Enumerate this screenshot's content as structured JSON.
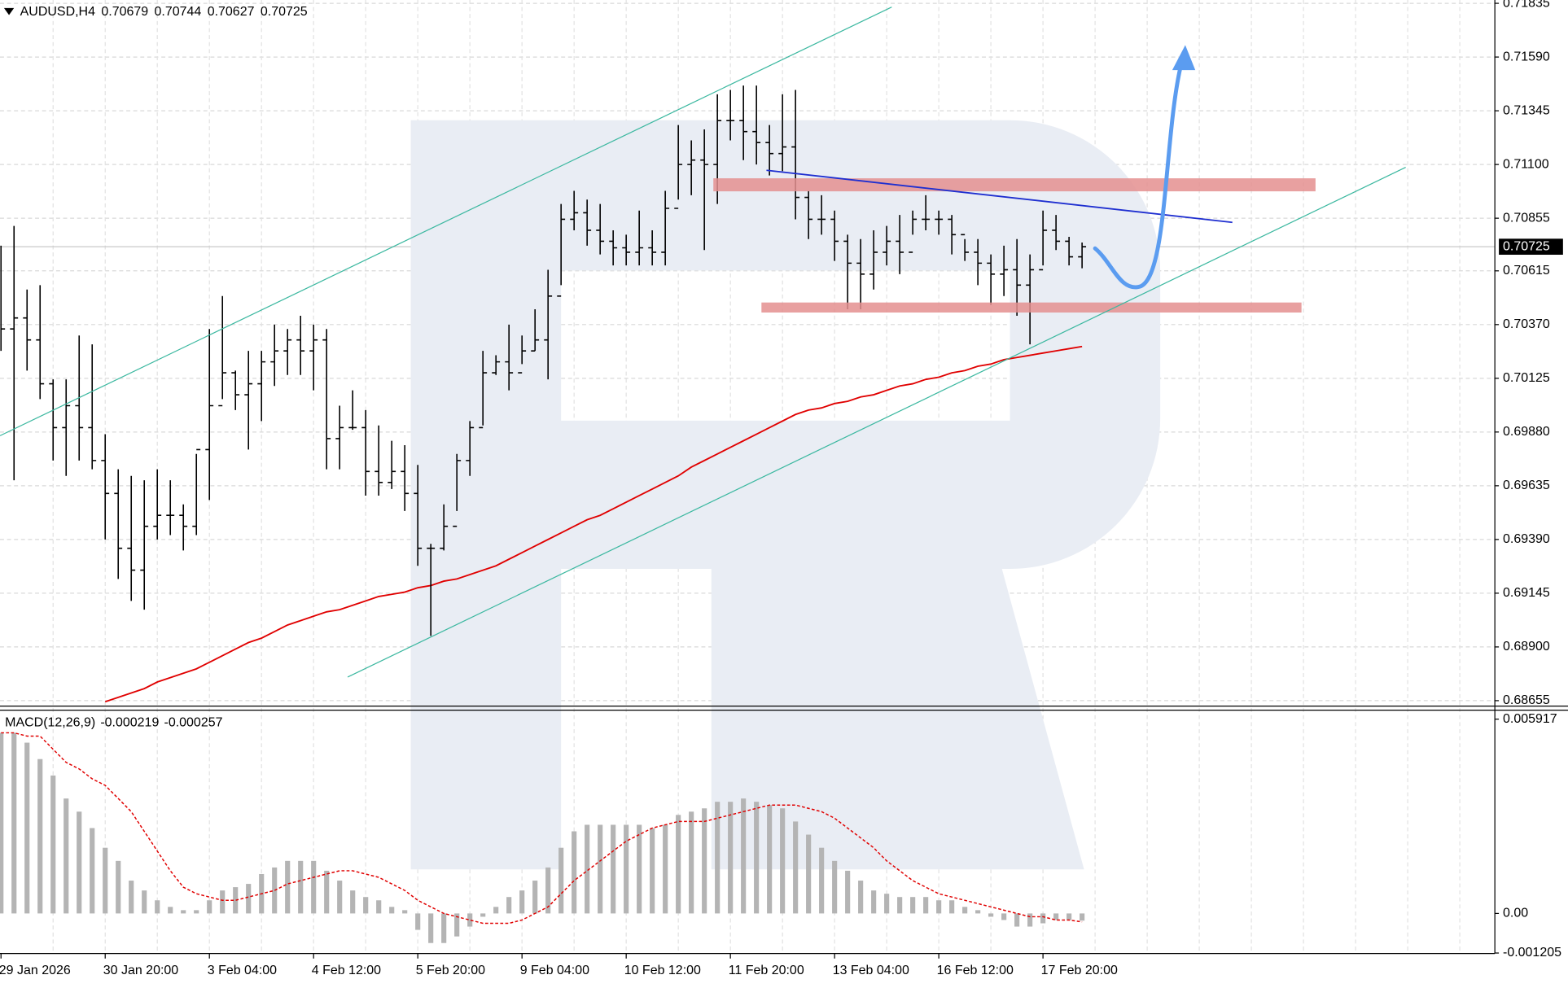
{
  "chart_data": [
    {
      "type": "ohlc",
      "title": "AUDUSD,H4",
      "color": "#000000",
      "grid": true,
      "categories": [
        "29 Jan 2026",
        null,
        null,
        null,
        null,
        null,
        null,
        null,
        "30 Jan 20:00",
        null,
        null,
        null,
        null,
        null,
        null,
        null,
        "3 Feb 04:00",
        null,
        null,
        null,
        null,
        null,
        null,
        null,
        "4 Feb 12:00",
        null,
        null,
        null,
        null,
        null,
        null,
        null,
        "5 Feb 20:00",
        null,
        null,
        null,
        null,
        null,
        null,
        null,
        "9 Feb 04:00",
        null,
        null,
        null,
        null,
        null,
        null,
        null,
        "10 Feb 12:00",
        null,
        null,
        null,
        null,
        null,
        null,
        null,
        "11 Feb 20:00",
        null,
        null,
        null,
        null,
        null,
        null,
        null,
        "13 Feb 04:00",
        null,
        null,
        null,
        null,
        null,
        null,
        null,
        "16 Feb 12:00",
        null,
        null,
        null,
        null,
        null,
        null,
        null,
        "17 Feb 20:00",
        null,
        null,
        null
      ],
      "high": [
        0.7073,
        0.7082,
        0.7053,
        0.7055,
        0.7012,
        0.7012,
        0.7032,
        0.7028,
        0.6987,
        0.6971,
        0.6968,
        0.6966,
        0.6971,
        0.6966,
        0.6955,
        0.6978,
        0.7035,
        0.705,
        0.7016,
        0.7025,
        0.7025,
        0.7037,
        0.7035,
        0.7041,
        0.7037,
        0.7035,
        0.7,
        0.7007,
        0.6998,
        0.6991,
        0.6984,
        0.6982,
        0.6973,
        0.6937,
        0.6955,
        0.6978,
        0.6993,
        0.7025,
        0.7023,
        0.7037,
        0.7032,
        0.7044,
        0.7062,
        0.7092,
        0.7098,
        0.7094,
        0.7092,
        0.708,
        0.7078,
        0.7089,
        0.708,
        0.7098,
        0.7128,
        0.7121,
        0.7126,
        0.7142,
        0.7144,
        0.7146,
        0.7146,
        0.7128,
        0.7142,
        0.7144,
        0.7098,
        0.7096,
        0.7089,
        0.7078,
        0.7076,
        0.708,
        0.7082,
        0.7087,
        0.7089,
        0.7096,
        0.7089,
        0.7087,
        0.7076,
        0.7076,
        0.7069,
        0.7073,
        0.7076,
        0.7069,
        0.7089,
        0.7087,
        0.7077,
        0.70744
      ],
      "low": [
        0.7025,
        0.6966,
        0.7016,
        0.7003,
        0.6975,
        0.6968,
        0.6975,
        0.6971,
        0.6939,
        0.6921,
        0.6911,
        0.6907,
        0.6939,
        0.6941,
        0.6934,
        0.6941,
        0.6957,
        0.7003,
        0.6998,
        0.698,
        0.6993,
        0.7009,
        0.7014,
        0.7014,
        0.7007,
        0.6971,
        0.6971,
        0.6989,
        0.6959,
        0.6959,
        0.6962,
        0.6952,
        0.6927,
        0.6895,
        0.6934,
        0.6952,
        0.6968,
        0.6991,
        0.7014,
        0.7007,
        0.7019,
        0.7025,
        0.7012,
        0.7055,
        0.708,
        0.7073,
        0.7069,
        0.7064,
        0.7064,
        0.7064,
        0.7064,
        0.7064,
        0.7094,
        0.7096,
        0.7071,
        0.7092,
        0.7121,
        0.7112,
        0.711,
        0.7105,
        0.7107,
        0.7085,
        0.7076,
        0.7078,
        0.7066,
        0.7044,
        0.7044,
        0.7053,
        0.7064,
        0.706,
        0.7078,
        0.708,
        0.7078,
        0.7069,
        0.7066,
        0.7055,
        0.7046,
        0.705,
        0.7041,
        0.7028,
        0.7064,
        0.7071,
        0.7064,
        0.70627
      ],
      "close": [
        0.7035,
        0.704,
        0.703,
        0.701,
        0.699,
        0.7,
        0.699,
        0.6975,
        0.696,
        0.6935,
        0.6925,
        0.6945,
        0.695,
        0.695,
        0.6945,
        0.698,
        0.7,
        0.7015,
        0.7005,
        0.701,
        0.702,
        0.7025,
        0.703,
        0.7025,
        0.703,
        0.6985,
        0.699,
        0.699,
        0.697,
        0.6965,
        0.697,
        0.696,
        0.6935,
        0.6935,
        0.6945,
        0.6975,
        0.699,
        0.7015,
        0.702,
        0.7015,
        0.7025,
        0.703,
        0.705,
        0.7085,
        0.7088,
        0.708,
        0.7075,
        0.7072,
        0.707,
        0.7072,
        0.707,
        0.709,
        0.711,
        0.7112,
        0.711,
        0.713,
        0.713,
        0.7125,
        0.712,
        0.7115,
        0.7118,
        0.7095,
        0.7085,
        0.7085,
        0.7075,
        0.7065,
        0.706,
        0.707,
        0.7075,
        0.707,
        0.7085,
        0.7085,
        0.7085,
        0.7078,
        0.707,
        0.7065,
        0.706,
        0.7062,
        0.7055,
        0.7062,
        0.708,
        0.7075,
        0.70679,
        0.70725
      ],
      "ma": {
        "color": "#e00000",
        "values": [
          null,
          null,
          null,
          null,
          null,
          null,
          null,
          null,
          0.6865,
          0.6867,
          0.6869,
          0.6871,
          0.6874,
          0.6876,
          0.6878,
          0.688,
          0.6883,
          0.6886,
          0.6889,
          0.6892,
          0.6894,
          0.6897,
          0.69,
          0.6902,
          0.6904,
          0.6906,
          0.6907,
          0.6909,
          0.6911,
          0.6913,
          0.6914,
          0.6915,
          0.6917,
          0.6918,
          0.692,
          0.6921,
          0.6923,
          0.6925,
          0.6927,
          0.693,
          0.6933,
          0.6936,
          0.6939,
          0.6942,
          0.6945,
          0.6948,
          0.695,
          0.6953,
          0.6956,
          0.6959,
          0.6962,
          0.6965,
          0.6968,
          0.6972,
          0.6975,
          0.6978,
          0.6981,
          0.6984,
          0.6987,
          0.699,
          0.6993,
          0.6996,
          0.6998,
          0.6999,
          0.7001,
          0.7002,
          0.7004,
          0.7005,
          0.7007,
          0.7009,
          0.701,
          0.7012,
          0.7013,
          0.7015,
          0.7016,
          0.7018,
          0.7019,
          0.7021,
          0.7022,
          0.7023,
          0.7024,
          0.7025,
          0.7026,
          0.7027
        ]
      },
      "ylim": [
        0.6863,
        0.7185
      ],
      "yticks": [
        0.71835,
        {
          "value": 0.7159,
          "label": "0.71590"
        },
        0.71345,
        {
          "value": 0.711,
          "label": "0.71100"
        },
        0.70855,
        0.70615,
        {
          "value": 0.7037,
          "label": "0.70370"
        },
        0.70125,
        {
          "value": 0.6988,
          "label": "0.69880"
        },
        0.69635,
        {
          "value": 0.6939,
          "label": "0.69390"
        },
        0.69145,
        {
          "value": 0.689,
          "label": "0.68900"
        },
        0.68655
      ]
    },
    {
      "type": "macd",
      "title": "MACD(12,26,9)",
      "histogram": {
        "color": "#b4b4b4",
        "values": [
          0.0055,
          0.0055,
          0.0052,
          0.0047,
          0.0042,
          0.0035,
          0.0031,
          0.0026,
          0.002,
          0.0016,
          0.001,
          0.0007,
          0.0004,
          0.0002,
          0.0001,
          0.0001,
          0.0004,
          0.0007,
          0.0008,
          0.0009,
          0.0012,
          0.0014,
          0.0016,
          0.0016,
          0.0016,
          0.0013,
          0.001,
          0.0007,
          0.0005,
          0.0004,
          0.0002,
          0.0001,
          -0.0005,
          -0.0009,
          -0.0009,
          -0.0007,
          -0.0004,
          -0.0001,
          0.0002,
          0.0005,
          0.0007,
          0.001,
          0.0014,
          0.002,
          0.0025,
          0.0027,
          0.0027,
          0.0027,
          0.0027,
          0.0027,
          0.0026,
          0.0027,
          0.003,
          0.0031,
          0.0032,
          0.0034,
          0.0034,
          0.0035,
          0.0034,
          0.0033,
          0.0032,
          0.0028,
          0.0024,
          0.002,
          0.0016,
          0.0013,
          0.001,
          0.0007,
          0.0006,
          0.0005,
          0.0005,
          0.0005,
          0.0004,
          0.0004,
          0.0002,
          0.0001,
          -0.0001,
          -0.0002,
          -0.0004,
          -0.0004,
          -0.0003,
          -0.0002,
          -0.0002,
          -0.000219
        ]
      },
      "signal": {
        "color": "#e00000",
        "values": [
          0.0055,
          0.0055,
          0.0054,
          0.0054,
          0.005,
          0.0046,
          0.0044,
          0.0041,
          0.0039,
          0.0035,
          0.0031,
          0.0025,
          0.0019,
          0.0013,
          0.0008,
          0.0006,
          0.0005,
          0.0004,
          0.0004,
          0.0005,
          0.0006,
          0.0007,
          0.0009,
          0.001,
          0.0011,
          0.0012,
          0.0013,
          0.0013,
          0.0012,
          0.0011,
          0.0009,
          0.0007,
          0.0004,
          0.0002,
          0.0,
          -0.0001,
          -0.0002,
          -0.0003,
          -0.0003,
          -0.0003,
          -0.0002,
          0.0,
          0.0002,
          0.0006,
          0.001,
          0.0013,
          0.0016,
          0.0019,
          0.0022,
          0.0024,
          0.0026,
          0.0027,
          0.0028,
          0.0028,
          0.0028,
          0.0029,
          0.003,
          0.0031,
          0.0032,
          0.0033,
          0.0033,
          0.0033,
          0.0032,
          0.0031,
          0.0029,
          0.0026,
          0.0023,
          0.002,
          0.0016,
          0.0013,
          0.001,
          0.0008,
          0.0006,
          0.0005,
          0.0004,
          0.0003,
          0.0002,
          0.0001,
          0.0,
          -0.0001,
          -0.0001,
          -0.0002,
          -0.0002,
          -0.000257
        ]
      },
      "ylim": [
        -0.00122,
        0.00616
      ],
      "yticks": [
        0.005917,
        {
          "value": 0,
          "label": "0.00"
        },
        -0.001205
      ]
    }
  ]
}
